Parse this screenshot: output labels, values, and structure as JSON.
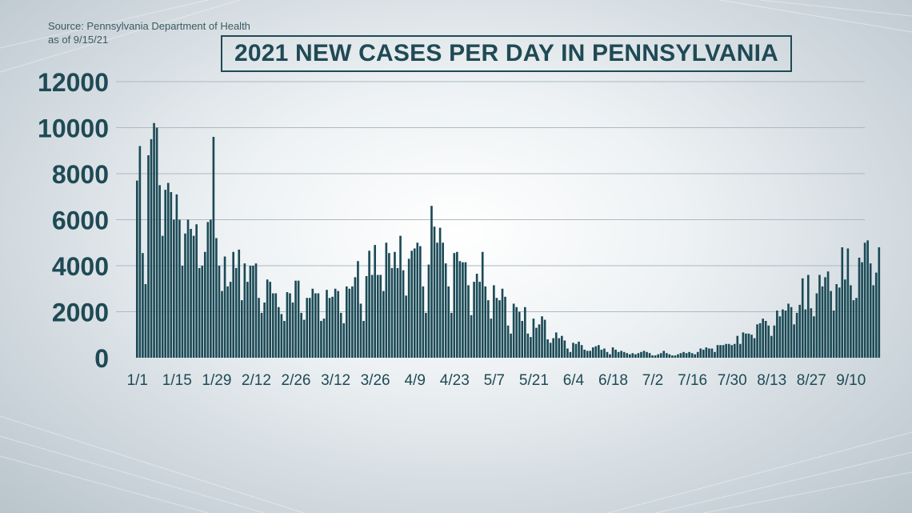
{
  "source": {
    "line1": "Source: Pennsylvania Department of Health",
    "line2": "as of 9/15/21"
  },
  "colors": {
    "bar": "#1b4a56",
    "text": "#1f4a55",
    "grid": "#aeb9bf"
  },
  "chart_data": {
    "type": "bar",
    "title": "2021 NEW CASES PER DAY IN PENNSYLVANIA",
    "xlabel": "",
    "ylabel": "",
    "ylim": [
      0,
      12000
    ],
    "yticks": [
      0,
      2000,
      4000,
      6000,
      8000,
      10000,
      12000
    ],
    "ytick_labels": [
      "0",
      "2000",
      "4000",
      "6000",
      "8000",
      "10000",
      "12000"
    ],
    "xtick_labels": [
      "1/1",
      "1/15",
      "1/29",
      "2/12",
      "2/26",
      "3/12",
      "3/26",
      "4/9",
      "4/23",
      "5/7",
      "5/21",
      "6/4",
      "6/18",
      "7/2",
      "7/16",
      "7/30",
      "8/13",
      "8/27",
      "9/10"
    ],
    "xtick_dates": [
      "2021-01-01",
      "2021-01-15",
      "2021-01-29",
      "2021-02-12",
      "2021-02-26",
      "2021-03-12",
      "2021-03-26",
      "2021-04-09",
      "2021-04-23",
      "2021-05-07",
      "2021-05-21",
      "2021-06-04",
      "2021-06-18",
      "2021-07-02",
      "2021-07-16",
      "2021-07-30",
      "2021-08-13",
      "2021-08-27",
      "2021-09-10"
    ],
    "grid": true,
    "legend": "none",
    "x_start": "2021-01-01",
    "x_end": "2021-09-14",
    "values": [
      7700,
      9200,
      4550,
      3200,
      8800,
      9500,
      10200,
      10000,
      7500,
      5300,
      7300,
      7600,
      7200,
      6000,
      7100,
      6000,
      4000,
      5400,
      6000,
      5600,
      5300,
      5800,
      3900,
      4000,
      4600,
      5900,
      6000,
      9600,
      5200,
      4000,
      2900,
      4400,
      3100,
      3300,
      4600,
      3900,
      4700,
      2500,
      4100,
      3300,
      4000,
      4000,
      4100,
      2600,
      1950,
      2400,
      3400,
      3300,
      2800,
      2800,
      2200,
      1900,
      1600,
      2850,
      2800,
      2400,
      3350,
      3350,
      1950,
      1650,
      2600,
      2600,
      3000,
      2800,
      2800,
      1600,
      1700,
      2950,
      2600,
      2650,
      3000,
      2900,
      1950,
      1500,
      3100,
      3000,
      3100,
      3500,
      4200,
      2350,
      1600,
      3550,
      4650,
      3600,
      4900,
      3600,
      3600,
      2900,
      5000,
      4550,
      3900,
      4600,
      3900,
      5300,
      3800,
      2700,
      4300,
      4650,
      4750,
      5000,
      4850,
      3100,
      1950,
      4050,
      6600,
      5700,
      5000,
      5650,
      5000,
      4100,
      3100,
      1950,
      4550,
      4600,
      4200,
      4150,
      4150,
      3150,
      1850,
      3300,
      3650,
      3300,
      4600,
      3100,
      2500,
      1700,
      3150,
      2600,
      2500,
      3000,
      2650,
      1400,
      1050,
      2350,
      2200,
      2000,
      1600,
      2200,
      1050,
      900,
      1700,
      1300,
      1450,
      1800,
      1650,
      800,
      650,
      850,
      1100,
      850,
      950,
      750,
      400,
      250,
      650,
      600,
      700,
      550,
      350,
      300,
      300,
      450,
      500,
      550,
      350,
      400,
      250,
      150,
      450,
      350,
      250,
      300,
      250,
      200,
      150,
      200,
      150,
      200,
      250,
      300,
      250,
      200,
      100,
      100,
      150,
      200,
      300,
      200,
      150,
      100,
      100,
      150,
      200,
      250,
      200,
      250,
      200,
      150,
      250,
      400,
      350,
      450,
      400,
      400,
      250,
      550,
      550,
      550,
      600,
      600,
      550,
      600,
      950,
      600,
      1100,
      1050,
      1050,
      1000,
      850,
      1450,
      1500,
      1700,
      1600,
      1400,
      950,
      1400,
      2050,
      1800,
      2100,
      2050,
      2350,
      2200,
      1450,
      1950,
      2300,
      3450,
      2100,
      3600,
      2150,
      1800,
      2800,
      3600,
      3100,
      3500,
      3750,
      2900,
      2050,
      3200,
      3050,
      4800,
      3400,
      4750,
      3150,
      2500,
      2600,
      4350,
      4150,
      5000,
      5100,
      4100,
      3150,
      3700,
      4800
    ]
  }
}
